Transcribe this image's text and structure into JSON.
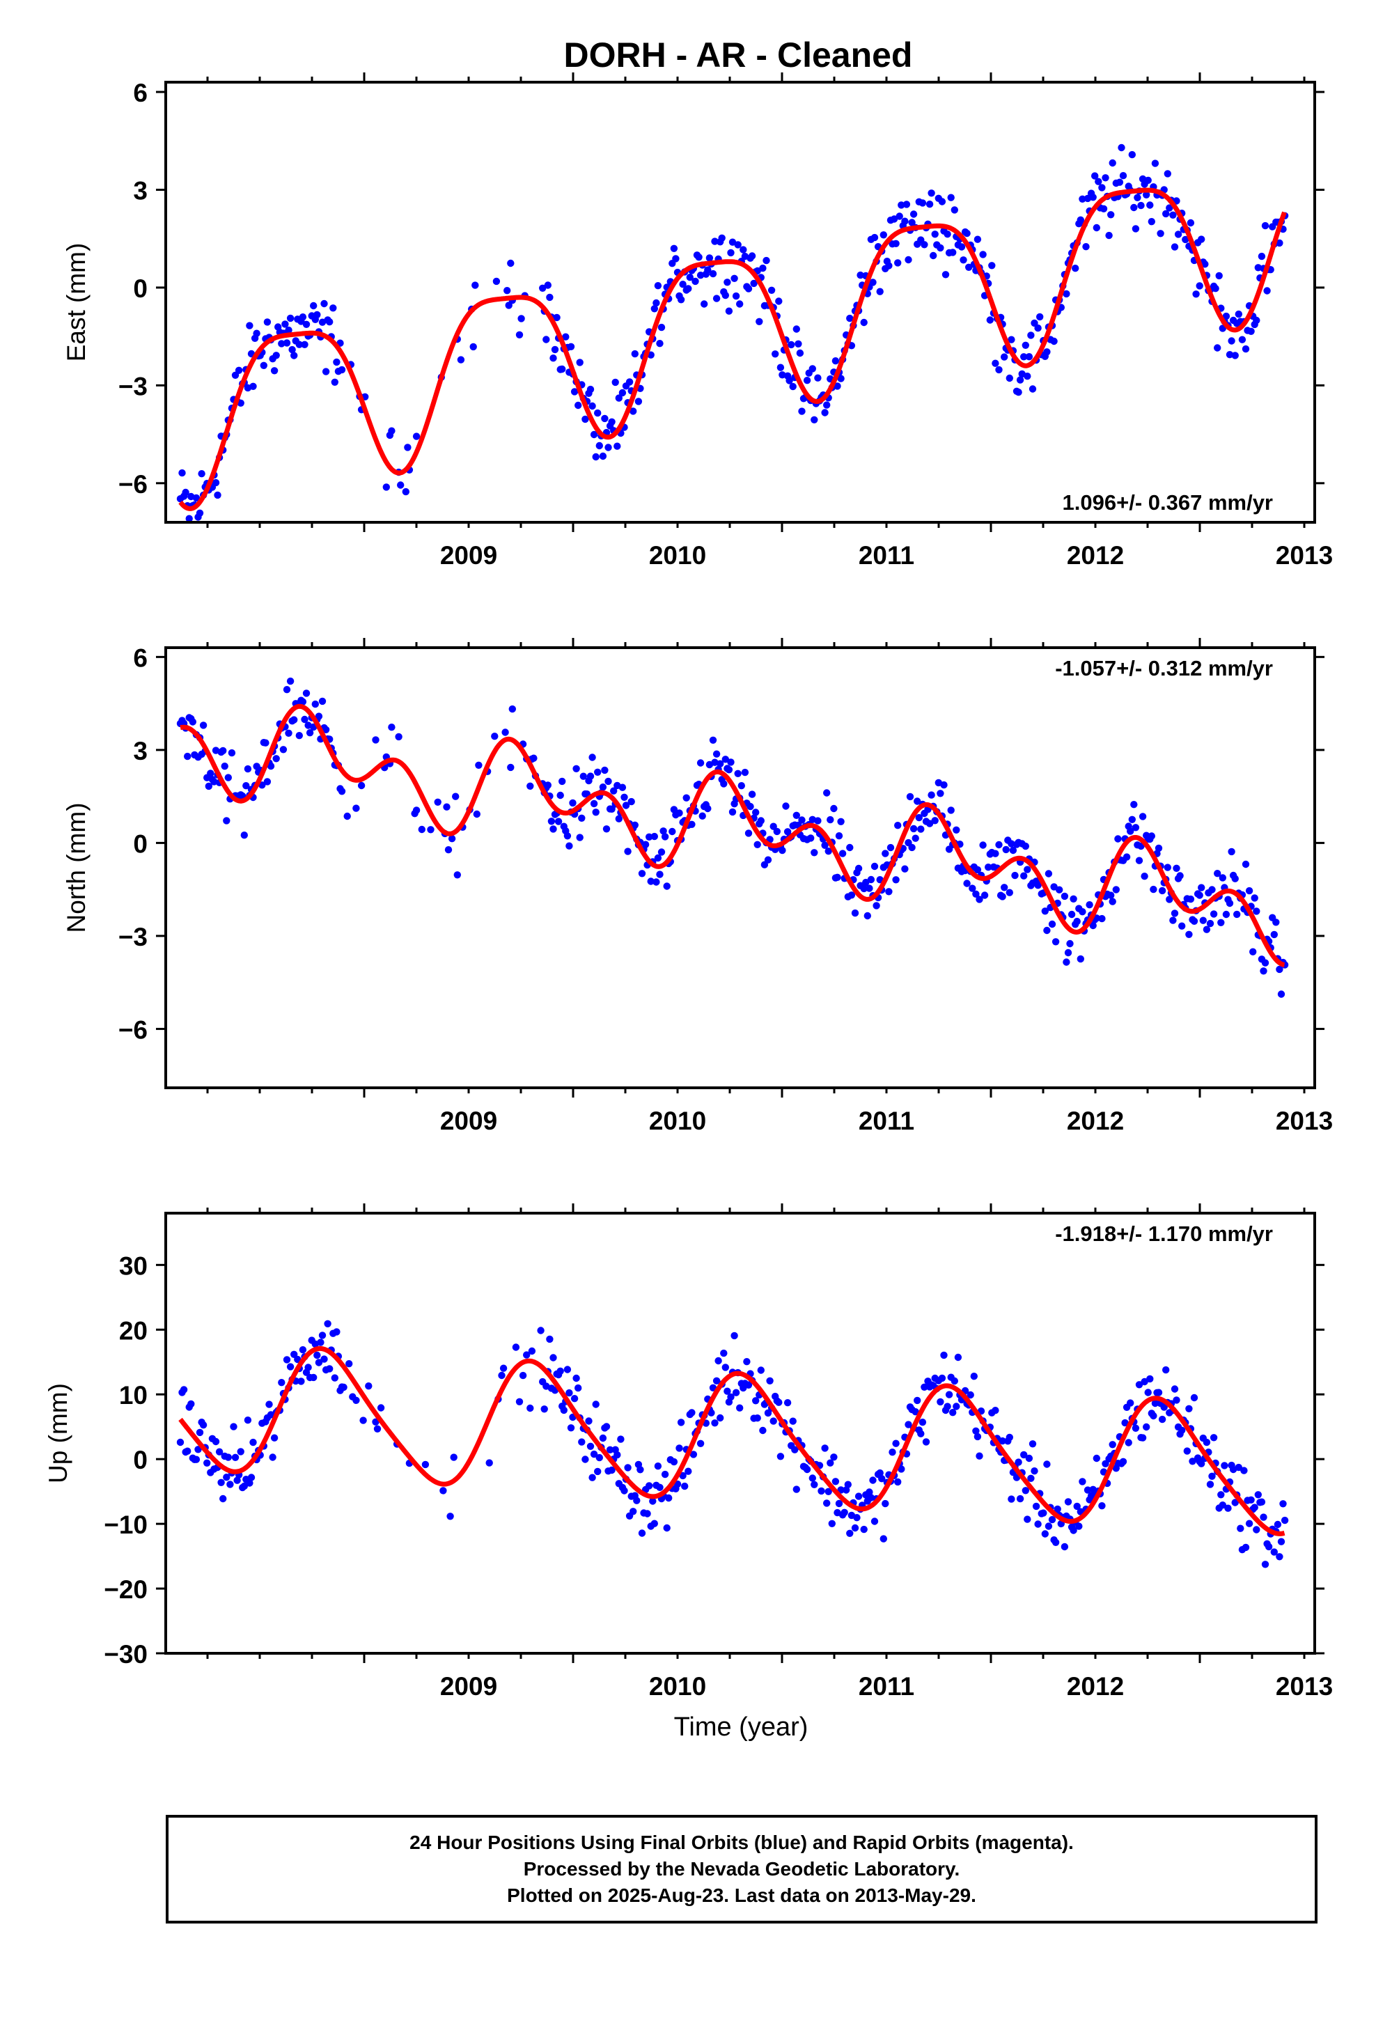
{
  "title": "DORH  - AR - Cleaned",
  "xlabel": "Time (year)",
  "footer": {
    "lines": [
      "24 Hour Positions Using Final Orbits (blue) and Rapid Orbits (magenta).",
      "Processed by the Nevada Geodetic Laboratory.",
      "Plotted on 2025-Aug-23. Last data on 2013-May-29."
    ]
  },
  "colors": {
    "points": "#0000ff",
    "model": "#ff0000",
    "frame": "#000000"
  },
  "chart_data": [
    {
      "type": "scatter",
      "component": "east",
      "ylabel": "East (mm)",
      "rate_label": "1.096+/- 0.367 mm/yr",
      "xlim": [
        2008.05,
        2013.55
      ],
      "ylim": [
        -7.2,
        6.3
      ],
      "yticks": [
        -6,
        -3,
        0,
        3,
        6
      ],
      "xticks": [
        2009,
        2010,
        2011,
        2012,
        2013
      ],
      "data_start": 2008.12,
      "data_end": 2013.41,
      "model": {
        "offset": -0.9,
        "trend": 1.096,
        "amplitude": 2.4,
        "phase_year": 0.42,
        "semi_amplitude": 0.6,
        "semi_phase_year": 0.3,
        "ref_year": 2010.8
      },
      "series": [
        {
          "name": "",
          "style": "points"
        },
        {
          "name": "",
          "style": "line"
        }
      ]
    },
    {
      "type": "scatter",
      "component": "north",
      "ylabel": "North (mm)",
      "rate_label": "-1.057+/- 0.312 mm/yr",
      "xlim": [
        2008.05,
        2013.55
      ],
      "ylim": [
        -7.9,
        6.3
      ],
      "yticks": [
        -6,
        -3,
        0,
        3,
        6
      ],
      "xticks": [
        2009,
        2010,
        2011,
        2012,
        2013
      ],
      "data_start": 2008.12,
      "data_end": 2013.41,
      "model": {
        "offset": 0.5,
        "trend": -1.057,
        "amplitude": 0.9,
        "phase_year": 0.55,
        "semi_amplitude": 1.0,
        "semi_phase_year": 0.05,
        "ref_year": 2010.8
      },
      "series": [
        {
          "name": "",
          "style": "points"
        },
        {
          "name": "",
          "style": "line"
        }
      ]
    },
    {
      "type": "scatter",
      "component": "up",
      "ylabel": "Up (mm)",
      "rate_label": "-1.918+/- 1.170 mm/yr",
      "xlim": [
        2008.05,
        2013.55
      ],
      "ylim": [
        -30,
        38
      ],
      "yticks": [
        -30,
        -20,
        -10,
        0,
        10,
        20,
        30
      ],
      "xticks": [
        2009,
        2010,
        2011,
        2012,
        2013
      ],
      "data_start": 2008.12,
      "data_end": 2013.41,
      "model": {
        "offset": 3.0,
        "trend": -1.918,
        "amplitude": 9.5,
        "phase_year": 0.58,
        "semi_amplitude": 1.5,
        "semi_phase_year": 0.1,
        "ref_year": 2010.8
      },
      "series": [
        {
          "name": "",
          "style": "points"
        },
        {
          "name": "",
          "style": "line"
        }
      ]
    }
  ]
}
